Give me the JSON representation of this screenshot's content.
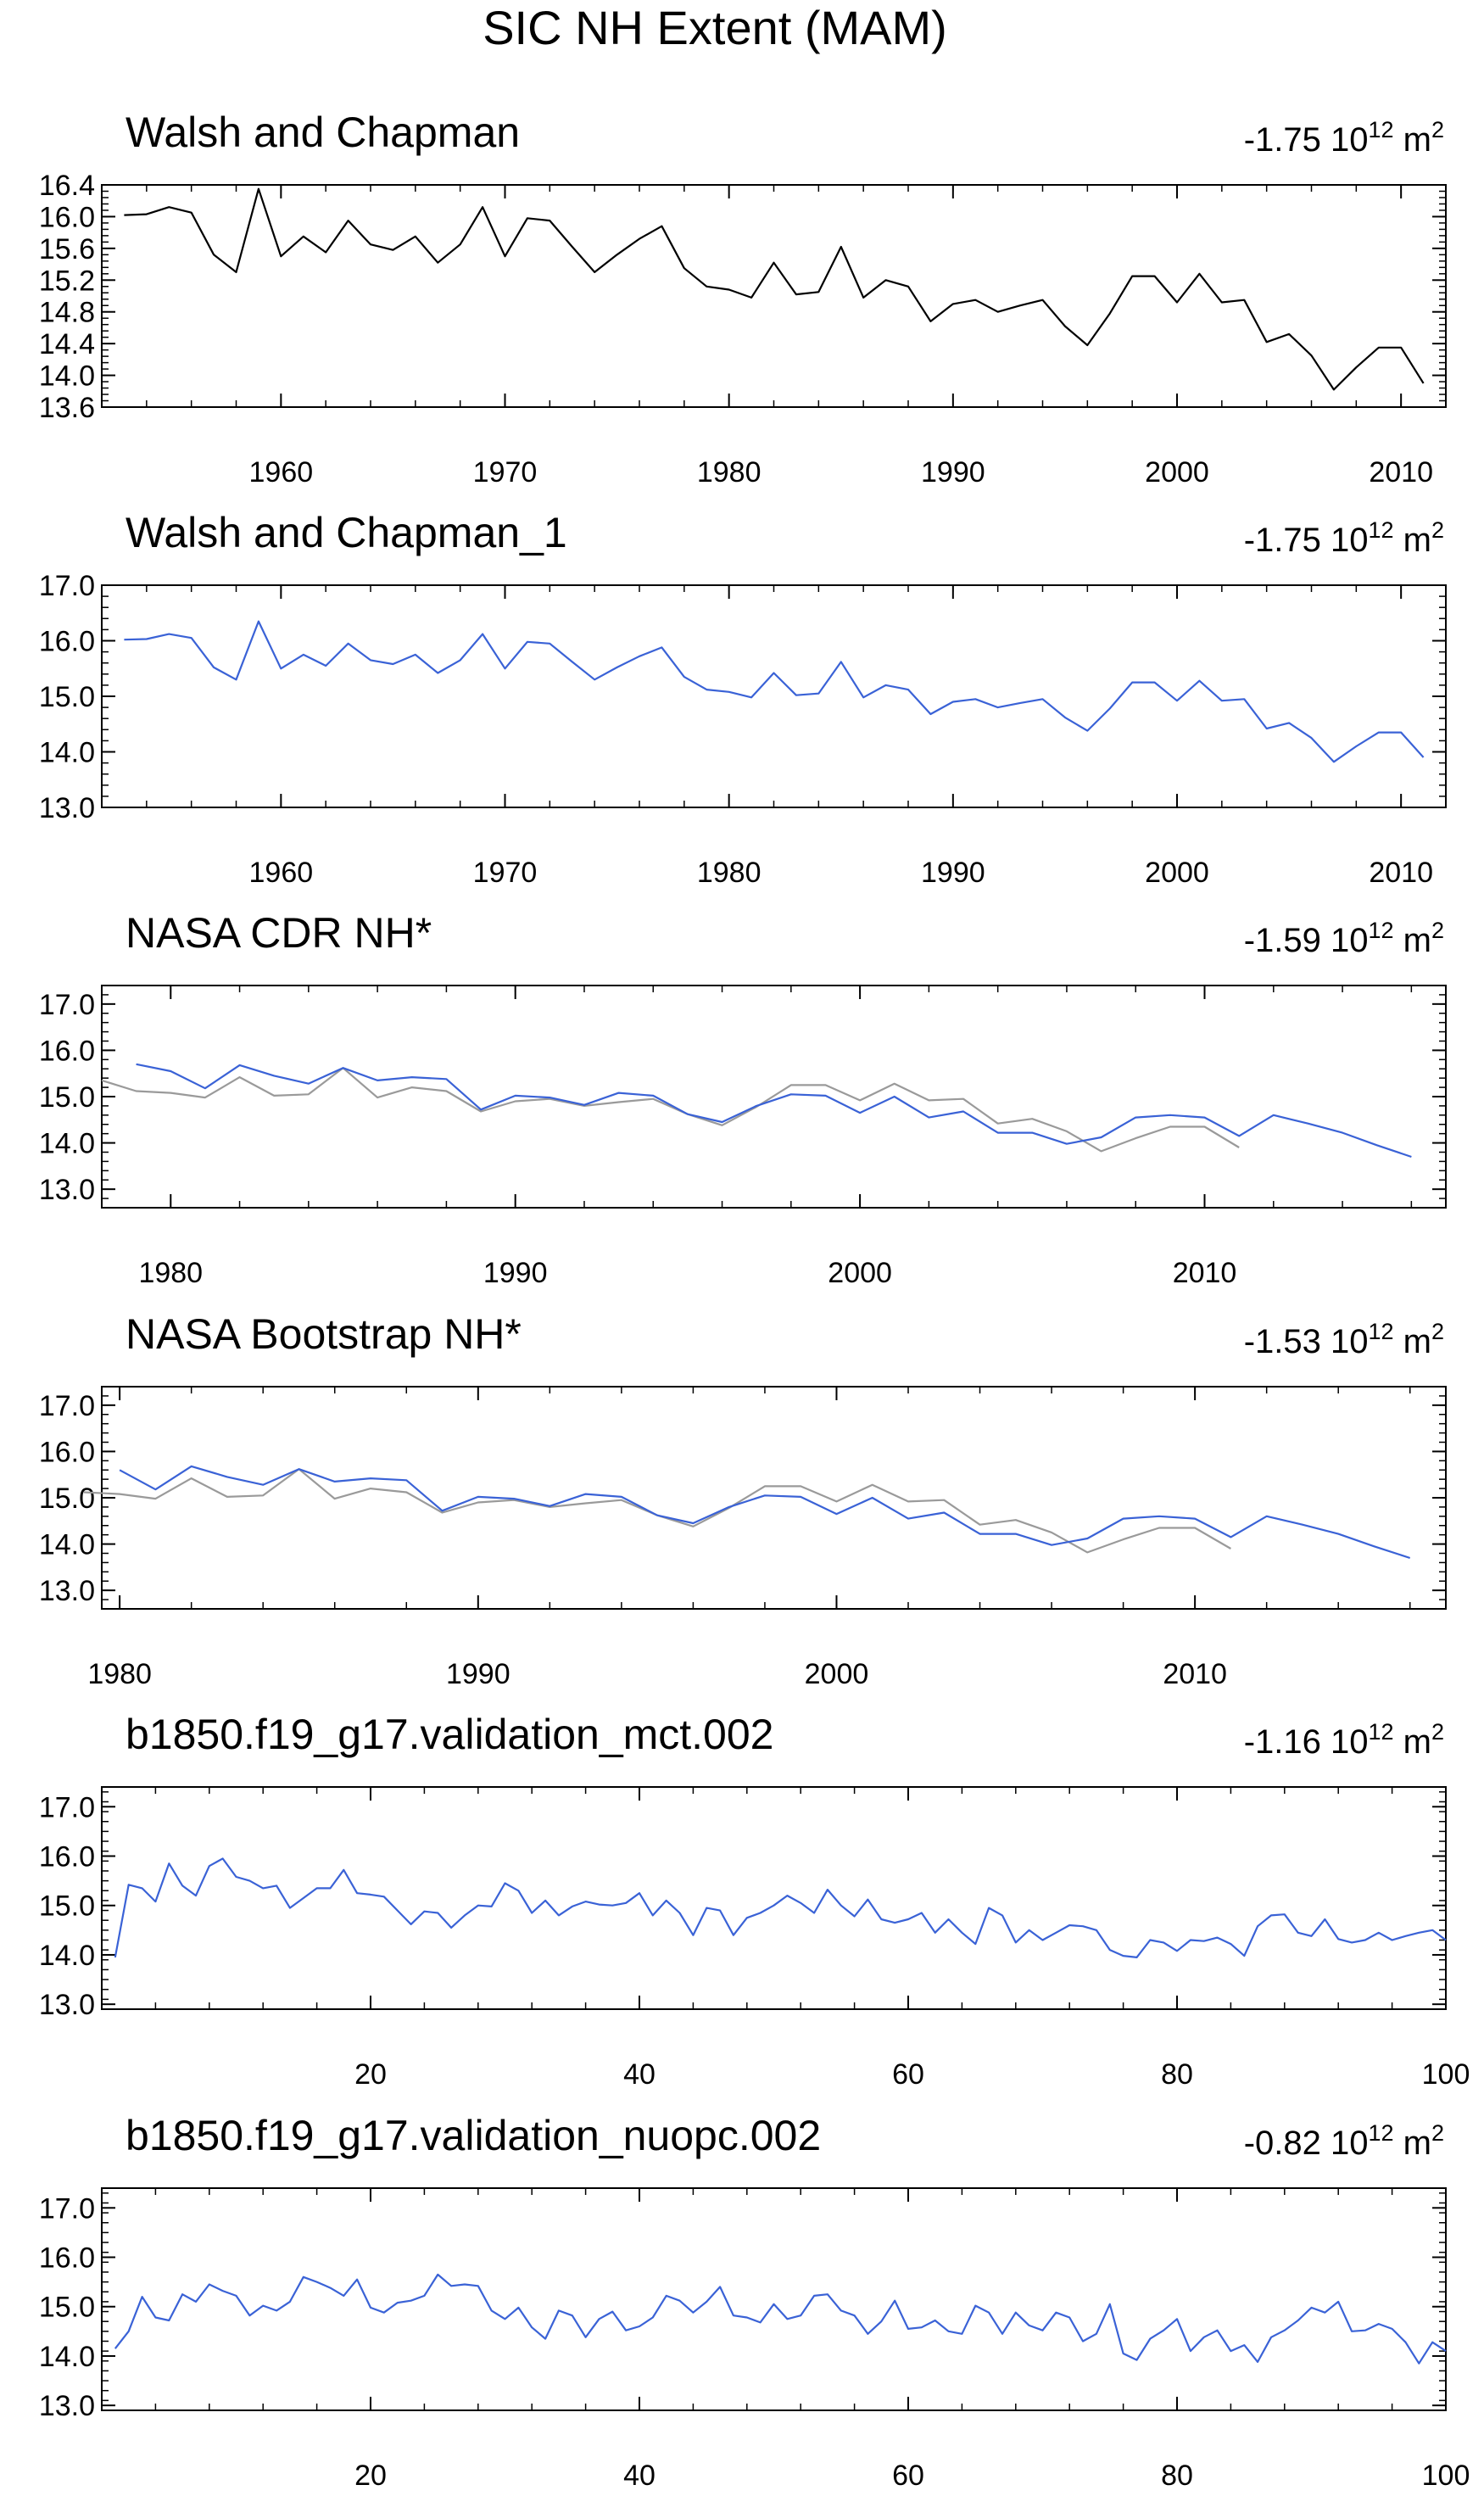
{
  "chart_data": {
    "title": "SIC NH Extent (MAM)",
    "unit_prefix": "10",
    "unit_exp": "12",
    "unit_suffix": "m",
    "unit_sup": "2",
    "colors": {
      "obs": "#000000",
      "model": "#3a62d6",
      "ref": "#9a9a9a"
    },
    "panels": [
      {
        "type": "line",
        "title": "Walsh and Chapman",
        "trend": "-1.75",
        "xlim": [
          1952,
          2012
        ],
        "ylim": [
          13.6,
          16.4
        ],
        "xticks": [
          1960,
          1970,
          1980,
          1990,
          2000,
          2010
        ],
        "yticks": [
          13.6,
          14.0,
          14.4,
          14.8,
          15.2,
          15.6,
          16.0,
          16.4
        ],
        "ytick_labels": [
          "13.6",
          "14.0",
          "14.4",
          "14.8",
          "15.2",
          "15.6",
          "16.0",
          "16.4"
        ],
        "series": [
          {
            "name": "Walsh and Chapman",
            "color": "#000000",
            "x_start": 1953,
            "values": [
              16.02,
              16.03,
              16.12,
              16.05,
              15.52,
              15.3,
              16.35,
              15.5,
              15.75,
              15.55,
              15.95,
              15.65,
              15.58,
              15.75,
              15.42,
              15.65,
              16.12,
              15.5,
              15.98,
              15.95,
              15.62,
              15.3,
              15.52,
              15.72,
              15.88,
              15.35,
              15.12,
              15.08,
              14.98,
              15.42,
              15.02,
              15.05,
              15.62,
              14.98,
              15.2,
              15.12,
              14.68,
              14.9,
              14.95,
              14.8,
              14.88,
              14.95,
              14.62,
              14.38,
              14.78,
              15.25,
              15.25,
              14.92,
              15.28,
              14.92,
              14.95,
              14.42,
              14.52,
              14.25,
              13.82,
              14.1,
              14.35,
              14.35,
              13.9
            ]
          }
        ]
      },
      {
        "type": "line",
        "title": "Walsh and Chapman_1",
        "trend": "-1.75",
        "xlim": [
          1952,
          2012
        ],
        "ylim": [
          13.0,
          17.0
        ],
        "xticks": [
          1960,
          1970,
          1980,
          1990,
          2000,
          2010
        ],
        "yticks": [
          13,
          14,
          15,
          16,
          17
        ],
        "ytick_labels": [
          "13.0",
          "14.0",
          "15.0",
          "16.0",
          "17.0"
        ],
        "series": [
          {
            "name": "Walsh and Chapman_1",
            "color": "#3a62d6",
            "x_start": 1953,
            "values": [
              16.02,
              16.03,
              16.12,
              16.05,
              15.52,
              15.3,
              16.35,
              15.5,
              15.75,
              15.55,
              15.95,
              15.65,
              15.58,
              15.75,
              15.42,
              15.65,
              16.12,
              15.5,
              15.98,
              15.95,
              15.62,
              15.3,
              15.52,
              15.72,
              15.88,
              15.35,
              15.12,
              15.08,
              14.98,
              15.42,
              15.02,
              15.05,
              15.62,
              14.98,
              15.2,
              15.12,
              14.68,
              14.9,
              14.95,
              14.8,
              14.88,
              14.95,
              14.62,
              14.38,
              14.78,
              15.25,
              15.25,
              14.92,
              15.28,
              14.92,
              14.95,
              14.42,
              14.52,
              14.25,
              13.82,
              14.1,
              14.35,
              14.35,
              13.9
            ]
          }
        ]
      },
      {
        "type": "line",
        "title": "NASA CDR NH*",
        "trend": "-1.59",
        "xlim": [
          1978,
          2017
        ],
        "ylim": [
          12.6,
          17.4
        ],
        "xticks": [
          1980,
          1990,
          2000,
          2010
        ],
        "yticks": [
          13,
          14,
          15,
          16,
          17
        ],
        "ytick_labels": [
          "13.0",
          "14.0",
          "15.0",
          "16.0",
          "17.0"
        ],
        "series": [
          {
            "name": "Walsh and Chapman",
            "color": "#9a9a9a",
            "x_start": 1978,
            "values": [
              15.35,
              15.12,
              15.08,
              14.98,
              15.42,
              15.02,
              15.05,
              15.62,
              14.98,
              15.2,
              15.12,
              14.68,
              14.9,
              14.95,
              14.8,
              14.88,
              14.95,
              14.62,
              14.38,
              14.78,
              15.25,
              15.25,
              14.92,
              15.28,
              14.92,
              14.95,
              14.42,
              14.52,
              14.25,
              13.82,
              14.1,
              14.35,
              14.35,
              13.9
            ]
          },
          {
            "name": "NASA CDR NH",
            "color": "#3a62d6",
            "x_start": 1979,
            "values": [
              15.7,
              15.55,
              15.18,
              15.68,
              15.45,
              15.28,
              15.62,
              15.35,
              15.42,
              15.38,
              14.72,
              15.02,
              14.98,
              14.82,
              15.08,
              15.02,
              14.62,
              14.45,
              14.8,
              15.05,
              15.02,
              14.65,
              15.0,
              14.55,
              14.68,
              14.22,
              14.22,
              13.98,
              14.12,
              14.55,
              14.6,
              14.55,
              14.15,
              14.6,
              14.42,
              14.22,
              13.95,
              13.7
            ]
          }
        ]
      },
      {
        "type": "line",
        "title": "NASA Bootstrap NH*",
        "trend": "-1.53",
        "xlim": [
          1979.5,
          2017
        ],
        "ylim": [
          12.6,
          17.4
        ],
        "xticks": [
          1980,
          1990,
          2000,
          2010
        ],
        "yticks": [
          13,
          14,
          15,
          16,
          17
        ],
        "ytick_labels": [
          "13.0",
          "14.0",
          "15.0",
          "16.0",
          "17.0"
        ],
        "series": [
          {
            "name": "Walsh and Chapman",
            "color": "#9a9a9a",
            "x_start": 1979,
            "values": [
              15.12,
              15.08,
              14.98,
              15.42,
              15.02,
              15.05,
              15.62,
              14.98,
              15.2,
              15.12,
              14.68,
              14.9,
              14.95,
              14.8,
              14.88,
              14.95,
              14.62,
              14.38,
              14.78,
              15.25,
              15.25,
              14.92,
              15.28,
              14.92,
              14.95,
              14.42,
              14.52,
              14.25,
              13.82,
              14.1,
              14.35,
              14.35,
              13.9
            ]
          },
          {
            "name": "NASA Bootstrap NH",
            "color": "#3a62d6",
            "x_start": 1980,
            "values": [
              15.6,
              15.18,
              15.68,
              15.45,
              15.28,
              15.62,
              15.35,
              15.42,
              15.38,
              14.72,
              15.02,
              14.98,
              14.82,
              15.08,
              15.02,
              14.62,
              14.45,
              14.8,
              15.05,
              15.02,
              14.65,
              15.0,
              14.55,
              14.68,
              14.22,
              14.22,
              13.98,
              14.12,
              14.55,
              14.6,
              14.55,
              14.15,
              14.6,
              14.42,
              14.22,
              13.95,
              13.7
            ]
          }
        ]
      },
      {
        "type": "line",
        "title": "b1850.f19_g17.validation_mct.002",
        "trend": "-1.16",
        "xlim": [
          0,
          100
        ],
        "ylim": [
          12.9,
          17.4
        ],
        "xticks": [
          20,
          40,
          60,
          80,
          100
        ],
        "yticks": [
          13,
          14,
          15,
          16,
          17
        ],
        "ytick_labels": [
          "13.0",
          "14.0",
          "15.0",
          "16.0",
          "17.0"
        ],
        "series": [
          {
            "name": "b1850.f19_g17.validation_mct.002",
            "color": "#3a62d6",
            "x_start": 1,
            "values": [
              13.95,
              15.42,
              15.35,
              15.08,
              15.85,
              15.4,
              15.2,
              15.8,
              15.95,
              15.58,
              15.5,
              15.35,
              15.4,
              14.95,
              15.15,
              15.35,
              15.35,
              15.72,
              15.25,
              15.22,
              15.18,
              14.9,
              14.62,
              14.88,
              14.85,
              14.55,
              14.8,
              15.0,
              14.98,
              15.45,
              15.3,
              14.85,
              15.1,
              14.8,
              14.98,
              15.08,
              15.02,
              15.0,
              15.05,
              15.25,
              14.8,
              15.1,
              14.85,
              14.4,
              14.95,
              14.9,
              14.4,
              14.75,
              14.85,
              15.0,
              15.2,
              15.05,
              14.85,
              15.32,
              15.0,
              14.78,
              15.12,
              14.72,
              14.65,
              14.72,
              14.85,
              14.45,
              14.72,
              14.45,
              14.22,
              14.95,
              14.8,
              14.25,
              14.5,
              14.3,
              14.45,
              14.6,
              14.58,
              14.5,
              14.1,
              13.98,
              13.95,
              14.3,
              14.25,
              14.08,
              14.3,
              14.28,
              14.35,
              14.22,
              13.98,
              14.58,
              14.8,
              14.82,
              14.45,
              14.38,
              14.72,
              14.32,
              14.25,
              14.3,
              14.45,
              14.3,
              14.38,
              14.45,
              14.5,
              14.3
            ]
          }
        ]
      },
      {
        "type": "line",
        "title": "b1850.f19_g17.validation_nuopc.002",
        "trend": "-0.82",
        "xlim": [
          0,
          100
        ],
        "ylim": [
          12.9,
          17.4
        ],
        "xticks": [
          20,
          40,
          60,
          80,
          100
        ],
        "yticks": [
          13,
          14,
          15,
          16,
          17
        ],
        "ytick_labels": [
          "13.0",
          "14.0",
          "15.0",
          "16.0",
          "17.0"
        ],
        "series": [
          {
            "name": "b1850.f19_g17.validation_nuopc.002",
            "color": "#3a62d6",
            "x_start": 1,
            "values": [
              14.15,
              14.5,
              15.2,
              14.78,
              14.72,
              15.25,
              15.1,
              15.45,
              15.32,
              15.22,
              14.82,
              15.02,
              14.92,
              15.1,
              15.6,
              15.5,
              15.38,
              15.22,
              15.55,
              14.98,
              14.88,
              15.08,
              15.12,
              15.22,
              15.65,
              15.42,
              15.45,
              15.42,
              14.92,
              14.75,
              14.98,
              14.58,
              14.35,
              14.92,
              14.82,
              14.38,
              14.75,
              14.9,
              14.52,
              14.6,
              14.78,
              15.22,
              15.12,
              14.88,
              15.1,
              15.4,
              14.82,
              14.78,
              14.68,
              15.05,
              14.75,
              14.82,
              15.22,
              15.25,
              14.92,
              14.82,
              14.45,
              14.7,
              15.12,
              14.55,
              14.58,
              14.72,
              14.5,
              14.45,
              15.02,
              14.88,
              14.45,
              14.88,
              14.62,
              14.52,
              14.88,
              14.78,
              14.3,
              14.45,
              15.05,
              14.05,
              13.92,
              14.35,
              14.52,
              14.75,
              14.1,
              14.38,
              14.52,
              14.1,
              14.22,
              13.88,
              14.38,
              14.52,
              14.72,
              14.98,
              14.88,
              15.1,
              14.5,
              14.52,
              14.65,
              14.55,
              14.28,
              13.85,
              14.28,
              14.1
            ]
          }
        ]
      }
    ]
  }
}
